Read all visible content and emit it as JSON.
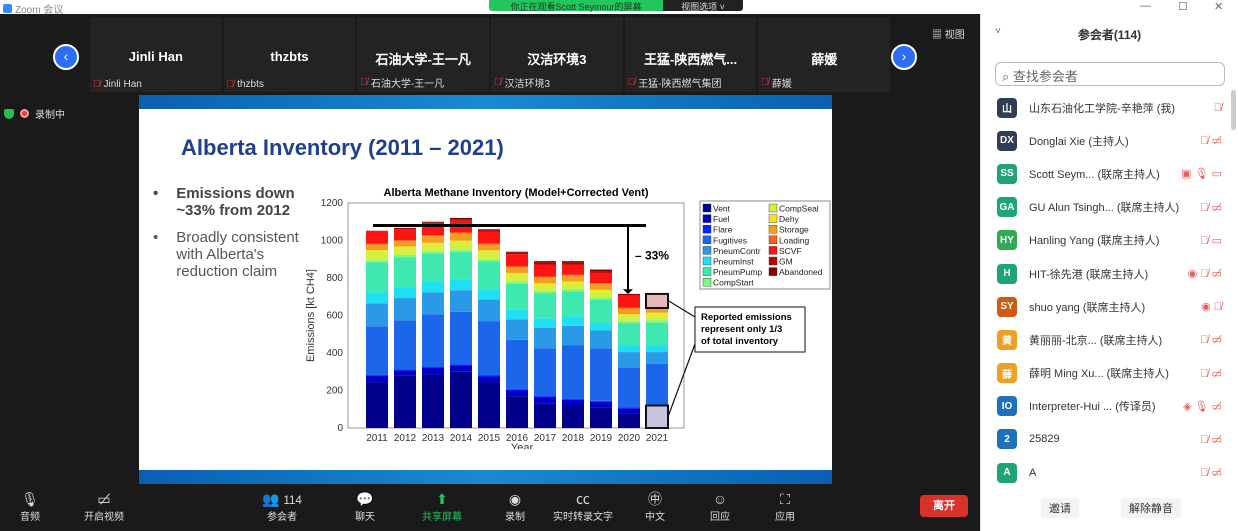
{
  "window": {
    "title": "Zoom 会议",
    "share_banner": "你正在观看Scott Seymour的屏幕",
    "view_options": "视图选项 ˅",
    "minimize": "—",
    "maximize": "☐",
    "close": "✕"
  },
  "strip": {
    "tiles": [
      {
        "name": "Jinli Han",
        "label": "Jinli Han"
      },
      {
        "name": "thzbts",
        "label": "thzbts"
      },
      {
        "name": "石油大学-王一凡",
        "label": "石油大学-王一凡"
      },
      {
        "name": "汉洁环境3",
        "label": "汉洁环境3"
      },
      {
        "name": "王猛-陕西燃气...",
        "label": "王猛-陕西燃气集团"
      },
      {
        "name": "薛媛",
        "label": "薛媛"
      }
    ],
    "prev": "‹",
    "next": "›",
    "view": "▦ 视图"
  },
  "recording": "录制中",
  "slide": {
    "title": "Alberta Inventory (2011 – 2021)",
    "bullets": [
      "Emissions down ~33% from 2012",
      "Broadly consistent with Alberta's reduction claim"
    ]
  },
  "chart_data": {
    "type": "bar",
    "stacked": true,
    "title": "Alberta Methane Inventory (Model+Corrected Vent)",
    "xlabel": "Year",
    "ylabel": "Emissions [kt CH4]",
    "ylim": [
      0,
      1200
    ],
    "yticks": [
      0,
      200,
      400,
      600,
      800,
      1000,
      1200
    ],
    "categories": [
      "2011",
      "2012",
      "2013",
      "2014",
      "2015",
      "2016",
      "2017",
      "2018",
      "2019",
      "2020",
      "2021"
    ],
    "series": [
      {
        "name": "Vent",
        "color": "#00008a",
        "values": [
          243,
          278,
          285,
          300,
          245,
          170,
          130,
          120,
          110,
          75,
          110
        ]
      },
      {
        "name": "Fuel",
        "color": "#0000c8",
        "values": [
          35,
          30,
          35,
          35,
          30,
          30,
          35,
          30,
          30,
          30,
          10
        ]
      },
      {
        "name": "Flare",
        "color": "#0022ff",
        "values": [
          5,
          5,
          5,
          5,
          5,
          5,
          5,
          5,
          5,
          5,
          0
        ]
      },
      {
        "name": "Fugitives",
        "color": "#1c66ea",
        "values": [
          260,
          260,
          280,
          280,
          290,
          265,
          255,
          285,
          280,
          210,
          223
        ]
      },
      {
        "name": "PneumContr",
        "color": "#2a9ae6",
        "values": [
          122,
          120,
          118,
          115,
          115,
          110,
          110,
          105,
          95,
          85,
          62
        ]
      },
      {
        "name": "PneumInst",
        "color": "#1ee0f2",
        "values": [
          58,
          58,
          58,
          58,
          53,
          50,
          50,
          50,
          40,
          35,
          35
        ]
      },
      {
        "name": "PneumPump",
        "color": "#3ee8b0",
        "values": [
          160,
          160,
          150,
          145,
          150,
          140,
          135,
          135,
          125,
          120,
          120
        ]
      },
      {
        "name": "CompStart",
        "color": "#80f880",
        "values": [
          12,
          12,
          12,
          12,
          12,
          12,
          12,
          12,
          12,
          12,
          15
        ]
      },
      {
        "name": "CompSeal",
        "color": "#d2f040",
        "values": [
          44,
          35,
          35,
          40,
          38,
          35,
          30,
          30,
          30,
          25,
          30
        ]
      },
      {
        "name": "Dehy",
        "color": "#ffe020",
        "values": [
          10,
          10,
          10,
          10,
          10,
          10,
          10,
          10,
          10,
          10,
          10
        ]
      },
      {
        "name": "Storage",
        "color": "#f0a020",
        "values": [
          30,
          28,
          35,
          38,
          30,
          30,
          30,
          30,
          30,
          30,
          25
        ]
      },
      {
        "name": "Loading",
        "color": "#ff6020",
        "values": [
          5,
          5,
          5,
          5,
          5,
          5,
          5,
          5,
          5,
          5,
          0
        ]
      },
      {
        "name": "SCVF",
        "color": "#ff1414",
        "values": [
          62,
          60,
          62,
          62,
          65,
          65,
          65,
          55,
          55,
          65,
          75
        ]
      },
      {
        "name": "GM",
        "color": "#c00000",
        "values": [
          3,
          3,
          5,
          8,
          6,
          8,
          10,
          10,
          10,
          5,
          0
        ]
      },
      {
        "name": "Abandoned",
        "color": "#800000",
        "values": [
          3,
          3,
          5,
          7,
          6,
          5,
          8,
          8,
          8,
          3,
          0
        ]
      }
    ],
    "annotations": {
      "reduction_label": "– 33%",
      "reference_level": 1080,
      "callout": "Reported emissions represent only 1/3 of total inventory",
      "reported_boxes_2021": [
        [
          0,
          120
        ],
        [
          640,
          715
        ]
      ],
      "reported_colors": [
        "#c8c4e0",
        "#e8b8b8"
      ]
    },
    "legend_placement": "right"
  },
  "toolbar": {
    "audio": "音频",
    "video": "开启视频",
    "participants": "参会者",
    "participants_count": "114",
    "chat": "聊天",
    "share": "共享屏幕",
    "record": "录制",
    "transcript": "实时转录文字",
    "language": "中文",
    "reactions": "回应",
    "apps": "应用",
    "leave": "离开"
  },
  "panel": {
    "title": "参会者(114)",
    "search_placeholder": "查找参会者",
    "participants": [
      {
        "initials": "山",
        "color": "#2f3e55",
        "name": "山东石油化工学院-辛艳萍 (我)",
        "icons": "🎙̸"
      },
      {
        "initials": "DX",
        "color": "#2f3e55",
        "name": "Donglai Xie (主持人)",
        "icons": "🎙̸ ▭̸"
      },
      {
        "initials": "SS",
        "color": "#1fa37a",
        "name": "Scott Seym... (联席主持人)",
        "icons": "▣ 🎙 ▭"
      },
      {
        "initials": "GA",
        "color": "#1fa37a",
        "name": "GU Alun Tsingh... (联席主持人)",
        "icons": "🎙̸ ▭̸"
      },
      {
        "initials": "HY",
        "color": "#2faa55",
        "name": "Hanling Yang (联席主持人)",
        "icons": "🎙̸ ▭"
      },
      {
        "initials": "H",
        "color": "#1fa37a",
        "name": "HIT-徐先港 (联席主持人)",
        "icons": "◉ 🎙̸ ▭̸"
      },
      {
        "initials": "SY",
        "color": "#d05a10",
        "name": "shuo yang (联席主持人)",
        "icons": "◉ 🎙̸"
      },
      {
        "initials": "黄",
        "color": "#f0a020",
        "name": "黄丽丽-北京... (联席主持人)",
        "icons": "🎙̸ ▭̸"
      },
      {
        "initials": "薛",
        "color": "#f0a020",
        "name": "薛明 Ming Xu... (联席主持人)",
        "icons": "🎙̸ ▭̸"
      },
      {
        "initials": "IO",
        "color": "#2070c0",
        "name": "Interpreter-Hui ... (传译员)",
        "icons": "◈ 🎙 ▭̸"
      },
      {
        "initials": "2",
        "color": "#2070c0",
        "name": "25829",
        "icons": "🎙̸ ▭̸"
      },
      {
        "initials": "A",
        "color": "#1fa37a",
        "name": "A",
        "icons": "🎙̸ ▭̸"
      }
    ],
    "invite": "邀请",
    "unmute_all": "解除静音"
  }
}
